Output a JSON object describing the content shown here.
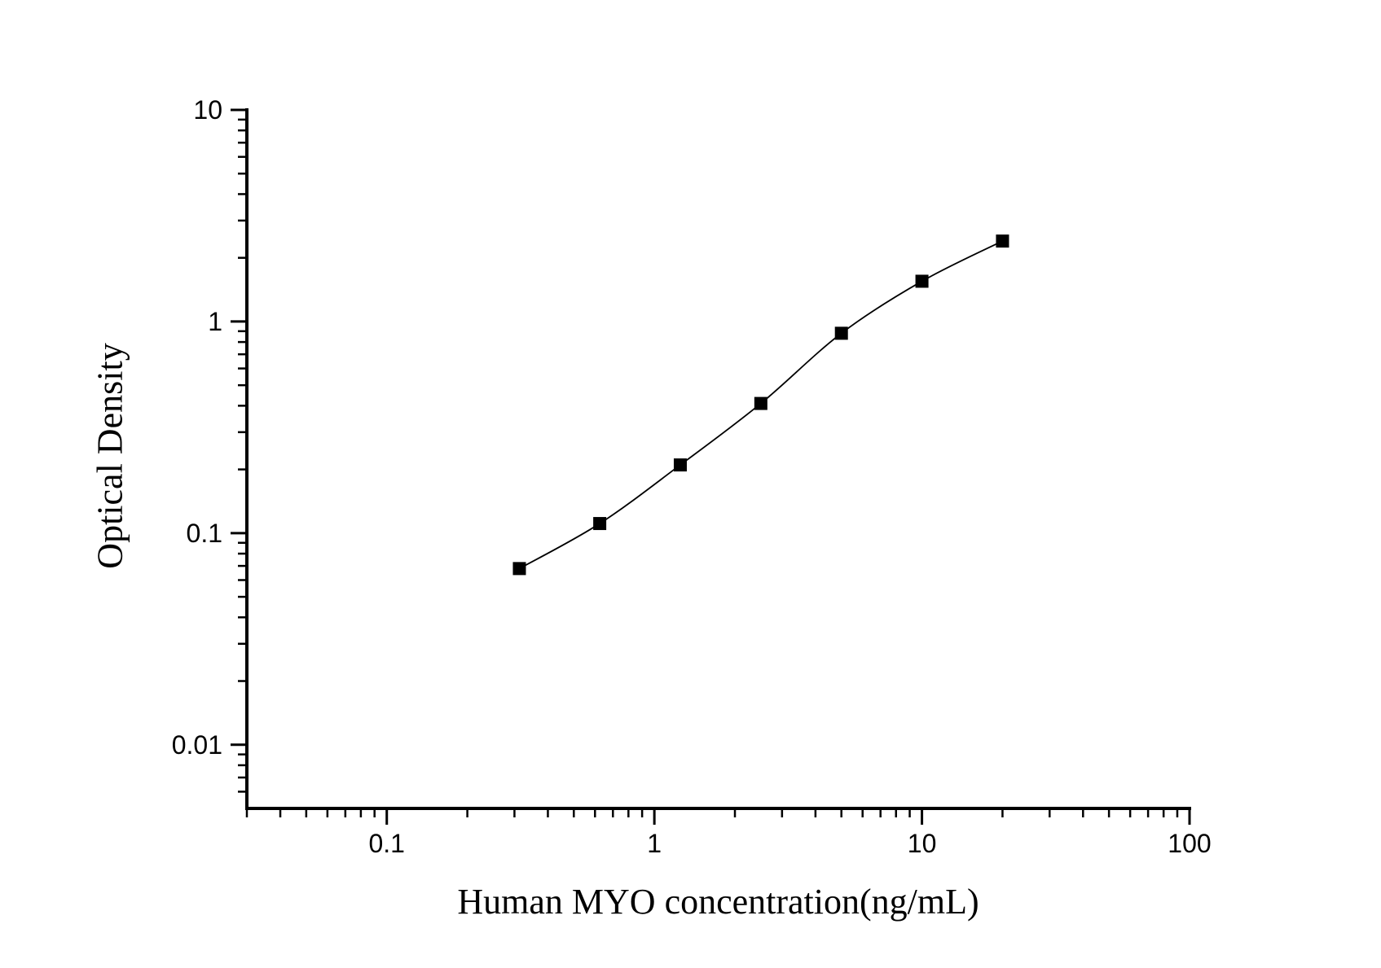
{
  "figure": {
    "background_color": "#ffffff",
    "foreground_color": "#000000"
  },
  "chart_data": {
    "type": "scatter",
    "subtype": "standard-curve-line-with-markers",
    "title": "",
    "xlabel": "Human MYO concentration(ng/mL)",
    "ylabel": "Optical Density",
    "x_scale": "log",
    "y_scale": "log",
    "xlim": [
      0.03,
      100
    ],
    "ylim": [
      0.005,
      10
    ],
    "x_major_ticks": [
      0.1,
      1,
      10,
      100
    ],
    "x_tick_labels": [
      "0.1",
      "1",
      "10",
      "100"
    ],
    "y_major_ticks": [
      0.01,
      0.1,
      1,
      10
    ],
    "y_tick_labels": [
      "0.01",
      "0.1",
      "1",
      "10"
    ],
    "grid": false,
    "legend": "none",
    "series": [
      {
        "name": "Human MYO standard curve",
        "marker": "filled-square",
        "marker_color": "#000000",
        "line_color": "#000000",
        "x": [
          0.313,
          0.625,
          1.25,
          2.5,
          5,
          10,
          20
        ],
        "y": [
          0.068,
          0.111,
          0.21,
          0.41,
          0.88,
          1.55,
          2.4
        ]
      }
    ]
  }
}
